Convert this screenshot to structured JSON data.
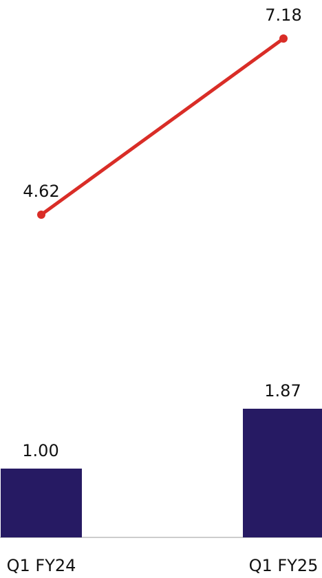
{
  "chart_data": {
    "type": "bar",
    "categories": [
      "Q1 FY24",
      "Q1 FY25"
    ],
    "series": [
      {
        "type": "bar",
        "values": [
          1.0,
          1.87
        ],
        "value_labels": [
          "1.00",
          "1.87"
        ],
        "color": "#261A63"
      },
      {
        "type": "line",
        "values": [
          4.62,
          7.18
        ],
        "value_labels": [
          "4.62",
          "7.18"
        ],
        "color": "#D92D27"
      }
    ],
    "title": "",
    "xlabel": "",
    "ylabel": "",
    "grid": false,
    "legend": "none",
    "colors": {
      "axis": "#CCCCCC",
      "text": "#111111"
    }
  }
}
